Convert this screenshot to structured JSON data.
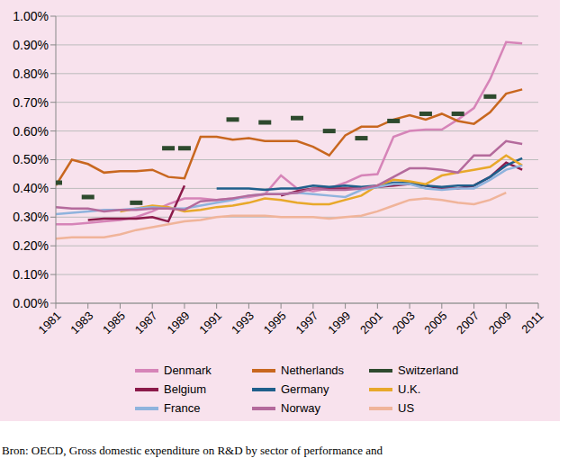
{
  "chart_data": {
    "type": "line",
    "source": "Bron: OECD, Gross domestic expenditure on R&D by sector of performance and",
    "x": [
      1981,
      1982,
      1983,
      1984,
      1985,
      1986,
      1987,
      1988,
      1989,
      1990,
      1991,
      1992,
      1993,
      1994,
      1995,
      1996,
      1997,
      1998,
      1999,
      2000,
      2001,
      2002,
      2003,
      2004,
      2005,
      2006,
      2007,
      2008,
      2009,
      2010,
      2011
    ],
    "xlim": [
      1981,
      2011
    ],
    "xticks": [
      1981,
      1983,
      1985,
      1987,
      1989,
      1991,
      1993,
      1995,
      1997,
      1999,
      2001,
      2003,
      2005,
      2007,
      2009,
      2011
    ],
    "ylim": [
      0,
      1
    ],
    "yticks": [
      {
        "value": 0,
        "label": "0.00%"
      },
      {
        "value": 0.1,
        "label": "0.10%"
      },
      {
        "value": 0.2,
        "label": "0.20%"
      },
      {
        "value": 0.3,
        "label": "0.30%"
      },
      {
        "value": 0.4,
        "label": "0.40%"
      },
      {
        "value": 0.5,
        "label": "0.50%"
      },
      {
        "value": 0.6,
        "label": "0.60%"
      },
      {
        "value": 0.7,
        "label": "0.70%"
      },
      {
        "value": 0.8,
        "label": "0.80%"
      },
      {
        "value": 0.9,
        "label": "0.90%"
      },
      {
        "value": 1,
        "label": "1.00%"
      }
    ],
    "grid": true,
    "legend": "bottom",
    "series": [
      {
        "name": "Denmark",
        "color": "#d684b8",
        "values": [
          0.275,
          0.275,
          0.28,
          0.285,
          0.29,
          0.3,
          0.32,
          0.345,
          0.365,
          0.365,
          0.36,
          0.365,
          0.37,
          0.38,
          0.445,
          0.4,
          0.39,
          0.4,
          0.42,
          0.445,
          0.45,
          0.58,
          0.6,
          0.605,
          0.605,
          0.64,
          0.68,
          0.78,
          0.91,
          0.905,
          null
        ]
      },
      {
        "name": "Netherlands",
        "color": "#c8671f",
        "values": [
          0.41,
          0.5,
          0.485,
          0.455,
          0.46,
          0.46,
          0.465,
          0.44,
          0.435,
          0.58,
          0.58,
          0.57,
          0.575,
          0.565,
          0.565,
          0.565,
          0.545,
          0.515,
          0.585,
          0.615,
          0.615,
          0.64,
          0.655,
          0.64,
          0.66,
          0.635,
          0.625,
          0.665,
          0.73,
          0.745,
          null
        ]
      },
      {
        "name": "Switzerland",
        "color": "#2e4a2e",
        "marker": "dash",
        "line_style": "none",
        "values": [
          0.42,
          null,
          0.37,
          null,
          null,
          0.35,
          null,
          0.54,
          0.54,
          null,
          null,
          0.64,
          null,
          0.63,
          null,
          0.645,
          null,
          0.6,
          null,
          0.575,
          null,
          0.635,
          null,
          0.66,
          null,
          0.66,
          null,
          0.72,
          null,
          null,
          null
        ]
      },
      {
        "name": "Belgium",
        "color": "#8b1a4a",
        "values": [
          null,
          null,
          0.29,
          0.295,
          0.295,
          0.295,
          0.3,
          0.285,
          0.41,
          null,
          null,
          null,
          null,
          null,
          0.375,
          0.39,
          0.4,
          0.4,
          0.4,
          0.4,
          0.405,
          0.41,
          0.415,
          0.41,
          0.4,
          0.4,
          0.41,
          0.44,
          0.49,
          0.465,
          null
        ]
      },
      {
        "name": "Germany",
        "color": "#1f5f8b",
        "values": [
          null,
          null,
          null,
          null,
          null,
          null,
          null,
          null,
          null,
          null,
          0.4,
          0.4,
          0.4,
          0.395,
          0.4,
          0.4,
          0.41,
          0.405,
          0.41,
          0.405,
          0.41,
          0.42,
          0.42,
          0.41,
          0.405,
          0.41,
          0.41,
          0.44,
          0.48,
          0.505,
          null
        ]
      },
      {
        "name": "U.K.",
        "color": "#e8a82a",
        "values": [
          null,
          null,
          null,
          null,
          0.32,
          0.33,
          0.34,
          0.335,
          0.32,
          0.325,
          0.335,
          0.34,
          0.35,
          0.365,
          0.36,
          0.35,
          0.345,
          0.345,
          0.36,
          0.375,
          0.41,
          0.43,
          0.425,
          0.415,
          0.445,
          0.455,
          0.465,
          0.475,
          0.515,
          0.48,
          null
        ]
      },
      {
        "name": "France",
        "color": "#8fb3dd",
        "values": [
          0.31,
          0.315,
          0.32,
          0.325,
          0.325,
          0.33,
          0.335,
          0.33,
          0.33,
          0.34,
          0.35,
          0.36,
          0.375,
          0.38,
          0.38,
          0.385,
          0.38,
          0.375,
          0.37,
          0.395,
          0.405,
          0.415,
          0.415,
          0.4,
          0.395,
          0.4,
          0.4,
          0.43,
          0.465,
          0.48,
          null
        ]
      },
      {
        "name": "Norway",
        "color": "#b46a9c",
        "values": [
          0.335,
          0.33,
          0.33,
          0.32,
          0.325,
          0.325,
          0.33,
          0.33,
          0.325,
          0.355,
          0.36,
          0.365,
          0.375,
          0.38,
          0.38,
          0.385,
          0.4,
          0.395,
          0.395,
          0.4,
          0.41,
          0.44,
          0.47,
          0.47,
          0.465,
          0.455,
          0.515,
          0.515,
          0.565,
          0.555,
          null
        ]
      },
      {
        "name": "US",
        "color": "#f0b49a",
        "values": [
          0.225,
          0.23,
          0.23,
          0.23,
          0.24,
          0.255,
          0.265,
          0.275,
          0.285,
          0.29,
          0.3,
          0.305,
          0.305,
          0.305,
          0.3,
          0.3,
          0.3,
          0.295,
          0.3,
          0.305,
          0.32,
          0.34,
          0.36,
          0.365,
          0.36,
          0.35,
          0.345,
          0.36,
          0.385,
          null,
          null
        ]
      }
    ]
  }
}
